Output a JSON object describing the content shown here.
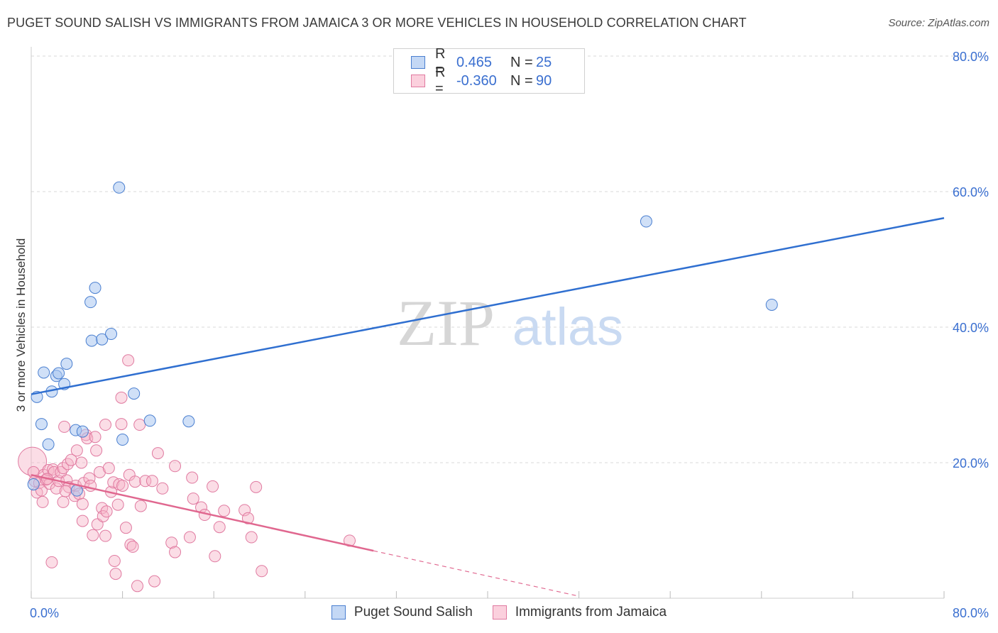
{
  "title": "PUGET SOUND SALISH VS IMMIGRANTS FROM JAMAICA 3 OR MORE VEHICLES IN HOUSEHOLD CORRELATION CHART",
  "source": "Source: ZipAtlas.com",
  "watermark": {
    "zip": "ZIP",
    "atlas": "atlas"
  },
  "legend_top": {
    "rows": [
      {
        "r_label": "R =",
        "r_value": "0.465",
        "n_label": "N =",
        "n_value": "25"
      },
      {
        "r_label": "R =",
        "r_value": "-0.360",
        "n_label": "N =",
        "n_value": "90"
      }
    ]
  },
  "legend_bottom": {
    "series": [
      "Puget Sound Salish",
      "Immigrants from Jamaica"
    ]
  },
  "colors": {
    "blue_fill": "#a9c7f0",
    "blue_stroke": "#4a7fd0",
    "blue_line": "#2f6fd0",
    "pink_fill": "#f6b3c8",
    "pink_stroke": "#e07aa0",
    "pink_line": "#e0678f",
    "tick_text": "#3a6fd0",
    "grid": "#d8d8d8"
  },
  "chart_data": {
    "type": "scatter",
    "title": "PUGET SOUND SALISH VS IMMIGRANTS FROM JAMAICA 3 OR MORE VEHICLES IN HOUSEHOLD CORRELATION CHART",
    "xlabel": "",
    "ylabel": "3 or more Vehicles in Household",
    "xlim": [
      0,
      80
    ],
    "ylim": [
      0,
      80
    ],
    "x_tick_labels": [
      "0.0%",
      "80.0%"
    ],
    "y_tick_labels": [
      "20.0%",
      "40.0%",
      "60.0%",
      "80.0%"
    ],
    "y_ticks": [
      20,
      40,
      60,
      80
    ],
    "grid": true,
    "series": [
      {
        "name": "Puget Sound Salish",
        "color": "blue",
        "R": 0.465,
        "N": 25,
        "trend": {
          "x0": 0,
          "y0": 30.1,
          "x1": 80,
          "y1": 56.1
        },
        "points": [
          [
            0.2,
            16.8
          ],
          [
            0.5,
            29.7
          ],
          [
            0.9,
            25.7
          ],
          [
            1.1,
            33.3
          ],
          [
            1.5,
            22.7
          ],
          [
            1.8,
            30.5
          ],
          [
            2.2,
            32.8
          ],
          [
            2.4,
            33.2
          ],
          [
            2.9,
            31.6
          ],
          [
            3.1,
            34.6
          ],
          [
            3.9,
            24.8
          ],
          [
            4.0,
            15.9
          ],
          [
            4.5,
            24.6
          ],
          [
            5.2,
            43.7
          ],
          [
            5.3,
            38.0
          ],
          [
            5.6,
            45.8
          ],
          [
            6.2,
            38.2
          ],
          [
            7.0,
            39.0
          ],
          [
            7.7,
            60.6
          ],
          [
            8.0,
            23.4
          ],
          [
            9.0,
            30.2
          ],
          [
            10.4,
            26.2
          ],
          [
            13.8,
            26.1
          ],
          [
            53.9,
            55.6
          ],
          [
            64.9,
            43.3
          ]
        ]
      },
      {
        "name": "Immigrants from Jamaica",
        "color": "pink",
        "R": -0.36,
        "N": 90,
        "trend": {
          "x0": 0,
          "y0": 18.2,
          "x1": 30,
          "y1": 7.0,
          "dash_to_x": 48,
          "dash_to_y": 0.3
        },
        "points": [
          [
            0.1,
            20.2
          ],
          [
            0.2,
            18.6
          ],
          [
            0.3,
            17.3
          ],
          [
            0.5,
            15.6
          ],
          [
            0.7,
            17.0
          ],
          [
            0.9,
            15.9
          ],
          [
            1.0,
            14.2
          ],
          [
            1.1,
            18.2
          ],
          [
            1.3,
            17.5
          ],
          [
            1.5,
            18.9
          ],
          [
            1.6,
            16.9
          ],
          [
            1.8,
            5.3
          ],
          [
            1.9,
            19.0
          ],
          [
            2.0,
            18.6
          ],
          [
            2.2,
            16.2
          ],
          [
            2.4,
            17.3
          ],
          [
            2.6,
            18.6
          ],
          [
            2.8,
            14.2
          ],
          [
            2.8,
            19.2
          ],
          [
            2.9,
            25.3
          ],
          [
            3.1,
            17.4
          ],
          [
            3.2,
            19.8
          ],
          [
            3.3,
            16.4
          ],
          [
            3.5,
            20.4
          ],
          [
            3.8,
            15.1
          ],
          [
            3.9,
            16.6
          ],
          [
            4.0,
            21.8
          ],
          [
            4.2,
            15.4
          ],
          [
            4.4,
            20.0
          ],
          [
            4.5,
            13.9
          ],
          [
            4.5,
            11.4
          ],
          [
            4.6,
            17.0
          ],
          [
            4.8,
            24.1
          ],
          [
            4.9,
            23.6
          ],
          [
            5.1,
            17.7
          ],
          [
            5.2,
            16.6
          ],
          [
            5.4,
            9.3
          ],
          [
            5.6,
            23.8
          ],
          [
            5.7,
            21.8
          ],
          [
            5.8,
            10.9
          ],
          [
            6.0,
            18.6
          ],
          [
            6.2,
            13.3
          ],
          [
            6.3,
            12.1
          ],
          [
            6.5,
            9.2
          ],
          [
            6.5,
            25.6
          ],
          [
            6.6,
            12.8
          ],
          [
            6.8,
            19.2
          ],
          [
            7.0,
            15.7
          ],
          [
            7.2,
            17.1
          ],
          [
            7.3,
            5.5
          ],
          [
            7.4,
            3.6
          ],
          [
            7.6,
            13.8
          ],
          [
            7.7,
            16.8
          ],
          [
            7.9,
            29.6
          ],
          [
            7.9,
            25.7
          ],
          [
            8.0,
            16.6
          ],
          [
            8.3,
            10.4
          ],
          [
            8.5,
            35.1
          ],
          [
            8.6,
            18.2
          ],
          [
            8.7,
            7.9
          ],
          [
            8.9,
            7.6
          ],
          [
            9.1,
            17.2
          ],
          [
            9.3,
            1.8
          ],
          [
            9.5,
            25.6
          ],
          [
            9.6,
            13.6
          ],
          [
            10.0,
            17.3
          ],
          [
            10.6,
            17.3
          ],
          [
            10.8,
            2.5
          ],
          [
            11.1,
            21.4
          ],
          [
            11.5,
            16.2
          ],
          [
            12.3,
            8.2
          ],
          [
            12.6,
            19.5
          ],
          [
            12.6,
            6.8
          ],
          [
            13.9,
            9.0
          ],
          [
            14.1,
            17.8
          ],
          [
            14.2,
            14.7
          ],
          [
            14.9,
            13.4
          ],
          [
            15.2,
            12.3
          ],
          [
            15.9,
            16.5
          ],
          [
            16.1,
            6.2
          ],
          [
            16.5,
            10.5
          ],
          [
            16.9,
            12.9
          ],
          [
            18.7,
            13.0
          ],
          [
            19.0,
            11.8
          ],
          [
            19.3,
            9.0
          ],
          [
            19.7,
            16.4
          ],
          [
            20.2,
            4.0
          ],
          [
            27.9,
            8.5
          ],
          [
            3.0,
            15.8
          ],
          [
            1.4,
            17.6
          ]
        ]
      }
    ]
  }
}
